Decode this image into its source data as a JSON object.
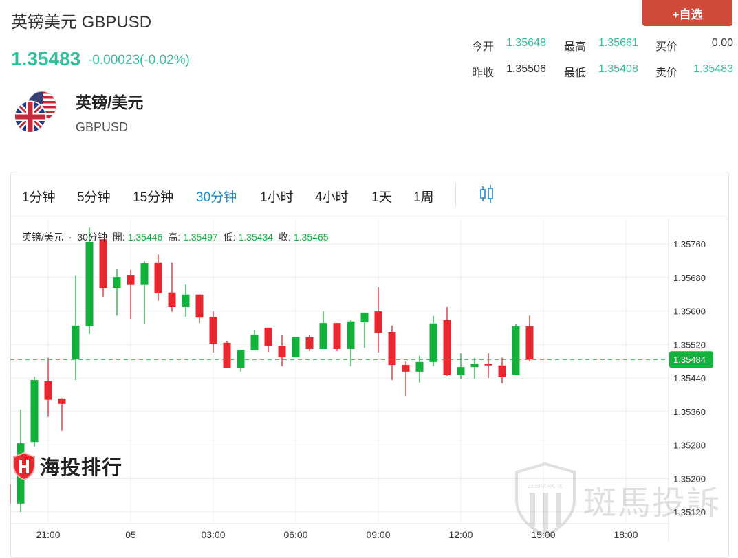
{
  "header": {
    "title": "英镑美元 GBPUSD",
    "price": "1.35483",
    "change": "-0.00023(-0.02%)",
    "add_button": "+自选",
    "stats": [
      {
        "label": "今开",
        "value": "1.35648",
        "tone": "teal"
      },
      {
        "label": "最高",
        "value": "1.35661",
        "tone": "teal"
      },
      {
        "label": "买价",
        "value": "0.00",
        "tone": "dark"
      },
      {
        "label": "昨收",
        "value": "1.35506",
        "tone": "dark"
      },
      {
        "label": "最低",
        "value": "1.35408",
        "tone": "teal"
      },
      {
        "label": "卖价",
        "value": "1.35483",
        "tone": "teal"
      }
    ],
    "pair_name": "英镑/美元",
    "pair_code": "GBPUSD",
    "flag_icon": "gb-us-flags-icon"
  },
  "toolbar": {
    "timeframes": [
      "1分钟",
      "5分钟",
      "15分钟",
      "30分钟",
      "1小时",
      "4小时",
      "1天",
      "1周"
    ],
    "active": "30分钟",
    "chart_type_icon": "candlestick-icon"
  },
  "legend": {
    "symbol": "英镑/美元",
    "sep": "·",
    "interval": "30分钟",
    "open_label": "開:",
    "open": "1.35446",
    "high_label": "高:",
    "high": "1.35497",
    "low_label": "低:",
    "low": "1.35434",
    "close_label": "收:",
    "close": "1.35465"
  },
  "watermarks": {
    "left": "海投排行",
    "right": "斑馬投訴",
    "right_badge": "ZEBRA RANK"
  },
  "colors": {
    "up": "#12b23c",
    "down": "#e8262d",
    "price_teal": "#35bf9c",
    "accent_blue": "#1e88d0",
    "button": "#cf4a39"
  },
  "chart_data": {
    "type": "candlestick",
    "interval": "30分钟",
    "ylim": [
      1.351,
      1.358
    ],
    "y_ticks": [
      "1.35760",
      "1.35680",
      "1.35600",
      "1.35520",
      "1.35440",
      "1.35360",
      "1.35280",
      "1.35200",
      "1.35120"
    ],
    "x_ticks": [
      {
        "label": "21:00",
        "index": 3
      },
      {
        "label": "05",
        "index": 9
      },
      {
        "label": "03:00",
        "index": 15
      },
      {
        "label": "06:00",
        "index": 21
      },
      {
        "label": "09:00",
        "index": 27
      },
      {
        "label": "12:00",
        "index": 33
      },
      {
        "label": "15:00",
        "index": 39
      },
      {
        "label": "18:00",
        "index": 45
      }
    ],
    "last_price": "1.35484",
    "grid": true,
    "candles": [
      [
        1.35186,
        1.35186,
        1.3514,
        1.3514
      ],
      [
        1.3514,
        1.35365,
        1.3512,
        1.35284
      ],
      [
        1.35287,
        1.35443,
        1.35276,
        1.35435
      ],
      [
        1.35432,
        1.35488,
        1.35347,
        1.35388
      ],
      [
        1.35391,
        1.35392,
        1.35314,
        1.35378
      ],
      [
        1.35486,
        1.35685,
        1.35435,
        1.35565
      ],
      [
        1.35563,
        1.35799,
        1.35545,
        1.35765
      ],
      [
        1.35771,
        1.35771,
        1.35634,
        1.35655
      ],
      [
        1.35655,
        1.35699,
        1.35589,
        1.35681
      ],
      [
        1.35686,
        1.35698,
        1.35581,
        1.35662
      ],
      [
        1.35662,
        1.35719,
        1.35568,
        1.35714
      ],
      [
        1.35716,
        1.35735,
        1.35624,
        1.35642
      ],
      [
        1.35644,
        1.35716,
        1.35598,
        1.35609
      ],
      [
        1.35609,
        1.35663,
        1.35586,
        1.35639
      ],
      [
        1.35639,
        1.35639,
        1.35571,
        1.35584
      ],
      [
        1.35586,
        1.35599,
        1.35501,
        1.35522
      ],
      [
        1.35524,
        1.35529,
        1.35463,
        1.35463
      ],
      [
        1.35463,
        1.35507,
        1.35455,
        1.35507
      ],
      [
        1.35506,
        1.35555,
        1.35506,
        1.35543
      ],
      [
        1.3556,
        1.3556,
        1.35502,
        1.35516
      ],
      [
        1.35517,
        1.35542,
        1.35468,
        1.35489
      ],
      [
        1.35489,
        1.35538,
        1.35489,
        1.35538
      ],
      [
        1.35537,
        1.35542,
        1.35504,
        1.35509
      ],
      [
        1.35509,
        1.35599,
        1.35509,
        1.35571
      ],
      [
        1.35571,
        1.35571,
        1.35504,
        1.35509
      ],
      [
        1.35509,
        1.35578,
        1.35468,
        1.35575
      ],
      [
        1.35573,
        1.35596,
        1.35512,
        1.35596
      ],
      [
        1.35599,
        1.35657,
        1.35501,
        1.35548
      ],
      [
        1.3555,
        1.35565,
        1.35435,
        1.35471
      ],
      [
        1.35471,
        1.35479,
        1.35397,
        1.35455
      ],
      [
        1.35455,
        1.35493,
        1.35429,
        1.35478
      ],
      [
        1.35478,
        1.35588,
        1.35468,
        1.3557
      ],
      [
        1.35578,
        1.35609,
        1.35445,
        1.35448
      ],
      [
        1.35447,
        1.35499,
        1.35437,
        1.35466
      ],
      [
        1.35466,
        1.35488,
        1.35438,
        1.35474
      ],
      [
        1.35474,
        1.35499,
        1.3544,
        1.3547
      ],
      [
        1.3547,
        1.35488,
        1.35427,
        1.35442
      ],
      [
        1.35447,
        1.35568,
        1.35447,
        1.35563
      ],
      [
        1.35563,
        1.35589,
        1.35479,
        1.35484
      ]
    ],
    "candle_format": [
      "open",
      "high",
      "low",
      "close"
    ]
  }
}
